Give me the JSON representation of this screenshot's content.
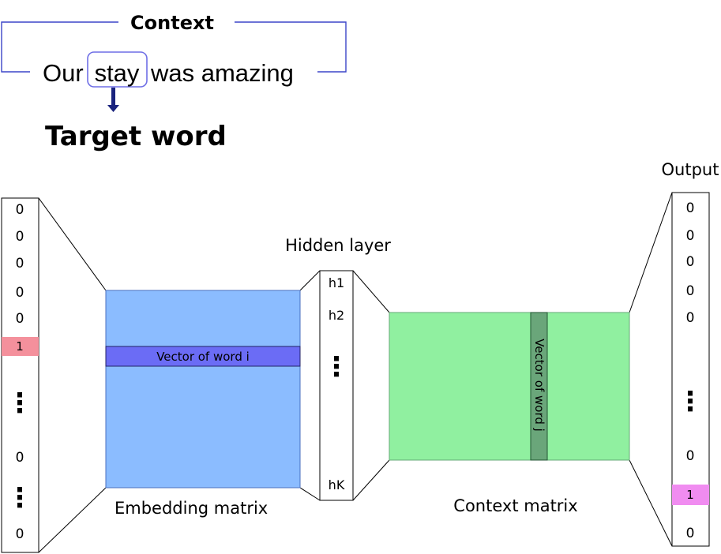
{
  "context_block": {
    "label": "Context",
    "sentence": {
      "before": "Our",
      "target": "stay",
      "after": "was amazing"
    },
    "target_label": "Target word",
    "frame_color": "#3b45c8",
    "arrow_color": "#1a237e"
  },
  "network": {
    "input_vector": {
      "cells": [
        "0",
        "0",
        "0",
        "0",
        "0",
        "1",
        "⋮",
        "0",
        "⋮",
        "0"
      ],
      "highlight_index": 5,
      "highlight_color": "#f4909c"
    },
    "embedding_matrix": {
      "label": "Embedding matrix",
      "row_label": "Vector of word i",
      "fill": "#8bbcff",
      "row_fill": "#6b6cf5"
    },
    "hidden_layer": {
      "label": "Hidden layer",
      "cells": [
        "h1",
        "h2",
        "⋮",
        "hK"
      ]
    },
    "context_matrix": {
      "label": "Context matrix",
      "column_label": "Vector of word j",
      "fill": "#90f0a0",
      "column_fill": "#6aa67a"
    },
    "output_vector": {
      "label": "Output",
      "cells": [
        "0",
        "0",
        "0",
        "0",
        "0",
        "⋮",
        "0",
        "1",
        "0"
      ],
      "highlight_index": 7,
      "highlight_color": "#f08cf0"
    }
  }
}
